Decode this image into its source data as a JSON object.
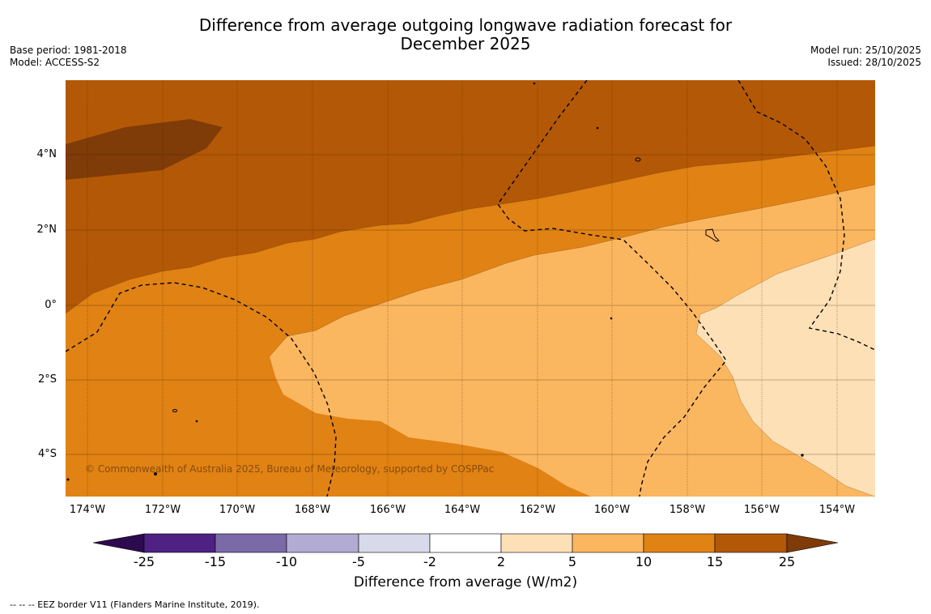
{
  "chart_data": {
    "type": "heatmap",
    "title_line1": "Difference from average outgoing longwave radiation forecast for",
    "title_line2": "December 2025",
    "base_period": "Base period: 1981-2018",
    "model": "Model: ACCESS-S2",
    "model_run": "Model run: 25/10/2025",
    "issued": "Issued: 28/10/2025",
    "copyright": "© Commonwealth of Australia 2025, Bureau of Meteorology, supported by COSPPac",
    "footnote": "--  --  -- EEZ border V11 (Flanders Marine Institute, 2019).",
    "x_ticks": [
      "174°W",
      "172°W",
      "170°W",
      "168°W",
      "166°W",
      "164°W",
      "162°W",
      "160°W",
      "158°W",
      "156°W",
      "154°W"
    ],
    "y_ticks": [
      "4°N",
      "2°N",
      "0°",
      "2°S",
      "4°S"
    ],
    "colorbar": {
      "label": "Difference from average (W/m2)",
      "ticks": [
        "-25",
        "-15",
        "-10",
        "-5",
        "-2",
        "2",
        "5",
        "10",
        "15",
        "25"
      ],
      "colors": [
        "#4e2183",
        "#7b6aa8",
        "#b2abd3",
        "#d8daeb",
        "#ffffff",
        "#fee0b6",
        "#fbb660",
        "#e08214",
        "#b35806"
      ],
      "extend_low": "#2d0a4e",
      "extend_high": "#7f3b08"
    },
    "regions": [
      {
        "band": "25+",
        "color": "#7f3b08"
      },
      {
        "band": "15 to 25",
        "color": "#b35806"
      },
      {
        "band": "10 to 15",
        "color": "#e08214"
      },
      {
        "band": "5 to 10",
        "color": "#fbb660"
      },
      {
        "band": "2 to 5",
        "color": "#fee0b6"
      }
    ]
  }
}
